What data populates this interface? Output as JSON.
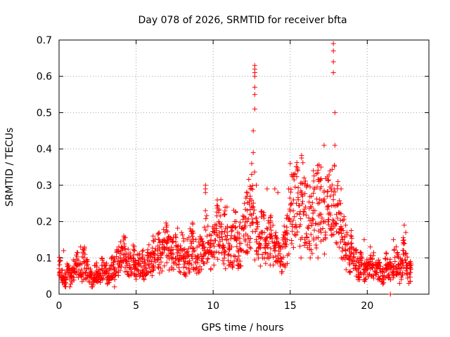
{
  "chart_data": {
    "type": "scatter",
    "title": "Day 078 of 2026, SRMTID for receiver bfta",
    "xlabel": "GPS time / hours",
    "ylabel": "SRMTID / TECUs",
    "xlim": [
      0,
      24
    ],
    "ylim": [
      0,
      0.7
    ],
    "xticks": [
      0,
      5,
      10,
      15,
      20
    ],
    "xtick_labels": [
      "0",
      "5",
      "10",
      "15",
      "20"
    ],
    "yticks": [
      0,
      0.1,
      0.2,
      0.3,
      0.4,
      0.5,
      0.6,
      0.7
    ],
    "ytick_labels": [
      "0",
      "0.1",
      "0.2",
      "0.3",
      "0.4",
      "0.5",
      "0.6",
      "0.7"
    ],
    "grid": true,
    "marker": "+",
    "color": "#ff0000",
    "series": [
      {
        "name": "SRMTID",
        "x": [
          0.0,
          0.2,
          0.4,
          0.6,
          0.8,
          1.0,
          1.2,
          1.4,
          1.6,
          1.8,
          2.0,
          2.2,
          2.4,
          2.6,
          2.8,
          3.0,
          3.2,
          3.4,
          3.6,
          3.8,
          4.0,
          4.2,
          4.4,
          4.6,
          4.8,
          5.0,
          5.2,
          5.4,
          5.6,
          5.8,
          6.0,
          6.2,
          6.4,
          6.6,
          6.8,
          7.0,
          7.2,
          7.4,
          7.6,
          7.8,
          8.0,
          8.2,
          8.4,
          8.6,
          8.8,
          9.0,
          9.2,
          9.4,
          9.6,
          9.8,
          10.0,
          10.2,
          10.4,
          10.6,
          10.8,
          11.0,
          11.2,
          11.4,
          11.6,
          11.8,
          12.0,
          12.2,
          12.4,
          12.6,
          12.8,
          13.0,
          13.2,
          13.4,
          13.6,
          13.8,
          14.0,
          14.2,
          14.4,
          14.6,
          14.8,
          15.0,
          15.2,
          15.4,
          15.6,
          15.8,
          16.0,
          16.2,
          16.4,
          16.6,
          16.8,
          17.0,
          17.2,
          17.4,
          17.6,
          17.8,
          18.0,
          18.2,
          18.4,
          18.6,
          18.8,
          19.0,
          19.2,
          19.4,
          19.6,
          19.8,
          20.0,
          20.2,
          20.4,
          20.6,
          20.8,
          21.0,
          21.2,
          21.4,
          21.6,
          21.8,
          22.0,
          22.2,
          22.4,
          22.6,
          22.8
        ],
        "y": [
          0.07,
          0.05,
          0.04,
          0.06,
          0.05,
          0.07,
          0.08,
          0.06,
          0.09,
          0.07,
          0.05,
          0.04,
          0.06,
          0.05,
          0.07,
          0.06,
          0.05,
          0.08,
          0.07,
          0.09,
          0.1,
          0.11,
          0.09,
          0.08,
          0.1,
          0.07,
          0.08,
          0.09,
          0.07,
          0.1,
          0.09,
          0.11,
          0.12,
          0.1,
          0.13,
          0.14,
          0.12,
          0.11,
          0.13,
          0.1,
          0.12,
          0.09,
          0.11,
          0.14,
          0.12,
          0.1,
          0.11,
          0.13,
          0.16,
          0.12,
          0.14,
          0.19,
          0.17,
          0.15,
          0.18,
          0.14,
          0.13,
          0.16,
          0.12,
          0.14,
          0.18,
          0.2,
          0.22,
          0.24,
          0.15,
          0.13,
          0.17,
          0.15,
          0.14,
          0.16,
          0.12,
          0.14,
          0.1,
          0.13,
          0.15,
          0.2,
          0.23,
          0.25,
          0.22,
          0.27,
          0.24,
          0.21,
          0.19,
          0.23,
          0.25,
          0.22,
          0.2,
          0.24,
          0.27,
          0.26,
          0.22,
          0.18,
          0.15,
          0.12,
          0.1,
          0.13,
          0.09,
          0.07,
          0.08,
          0.06,
          0.07,
          0.09,
          0.08,
          0.06,
          0.07,
          0.05,
          0.08,
          0.07,
          0.06,
          0.09,
          0.08,
          0.07,
          0.11,
          0.08,
          0.06
        ],
        "extra_points": [
          [
            0.3,
            0.12
          ],
          [
            0.7,
            0.02
          ],
          [
            1.4,
            0.13
          ],
          [
            1.6,
            0.04
          ],
          [
            2.1,
            0.02
          ],
          [
            3.6,
            0.02
          ],
          [
            4.2,
            0.16
          ],
          [
            6.1,
            0.16
          ],
          [
            7.0,
            0.19
          ],
          [
            8.5,
            0.18
          ],
          [
            9.5,
            0.3
          ],
          [
            9.5,
            0.29
          ],
          [
            9.5,
            0.28
          ],
          [
            9.5,
            0.23
          ],
          [
            10.5,
            0.26
          ],
          [
            10.7,
            0.22
          ],
          [
            10.8,
            0.07
          ],
          [
            11.4,
            0.2
          ],
          [
            11.6,
            0.08
          ],
          [
            12.1,
            0.21
          ],
          [
            12.4,
            0.27
          ],
          [
            12.4,
            0.29
          ],
          [
            12.5,
            0.33
          ],
          [
            12.5,
            0.36
          ],
          [
            12.6,
            0.39
          ],
          [
            12.6,
            0.45
          ],
          [
            12.7,
            0.51
          ],
          [
            12.7,
            0.55
          ],
          [
            12.7,
            0.57
          ],
          [
            12.7,
            0.6
          ],
          [
            12.7,
            0.61
          ],
          [
            12.7,
            0.62
          ],
          [
            12.7,
            0.63
          ],
          [
            12.8,
            0.3
          ],
          [
            13.5,
            0.29
          ],
          [
            13.7,
            0.08
          ],
          [
            14.0,
            0.29
          ],
          [
            14.2,
            0.28
          ],
          [
            14.4,
            0.09
          ],
          [
            14.6,
            0.08
          ],
          [
            14.9,
            0.29
          ],
          [
            15.0,
            0.36
          ],
          [
            15.1,
            0.33
          ],
          [
            15.5,
            0.34
          ],
          [
            15.7,
            0.1
          ],
          [
            15.9,
            0.32
          ],
          [
            16.3,
            0.1
          ],
          [
            16.5,
            0.34
          ],
          [
            16.8,
            0.1
          ],
          [
            17.0,
            0.35
          ],
          [
            17.2,
            0.41
          ],
          [
            17.4,
            0.27
          ],
          [
            17.8,
            0.61
          ],
          [
            17.8,
            0.64
          ],
          [
            17.8,
            0.67
          ],
          [
            17.8,
            0.69
          ],
          [
            17.9,
            0.5
          ],
          [
            17.9,
            0.41
          ],
          [
            18.1,
            0.31
          ],
          [
            18.3,
            0.29
          ],
          [
            18.6,
            0.19
          ],
          [
            19.2,
            0.08
          ],
          [
            19.4,
            0.04
          ],
          [
            19.8,
            0.15
          ],
          [
            20.2,
            0.13
          ],
          [
            20.7,
            0.04
          ],
          [
            21.1,
            0.06
          ],
          [
            21.5,
            0.0
          ],
          [
            21.7,
            0.15
          ],
          [
            22.1,
            0.03
          ],
          [
            22.4,
            0.19
          ],
          [
            22.5,
            0.17
          ],
          [
            22.7,
            0.03
          ],
          [
            22.8,
            0.09
          ]
        ]
      }
    ]
  }
}
